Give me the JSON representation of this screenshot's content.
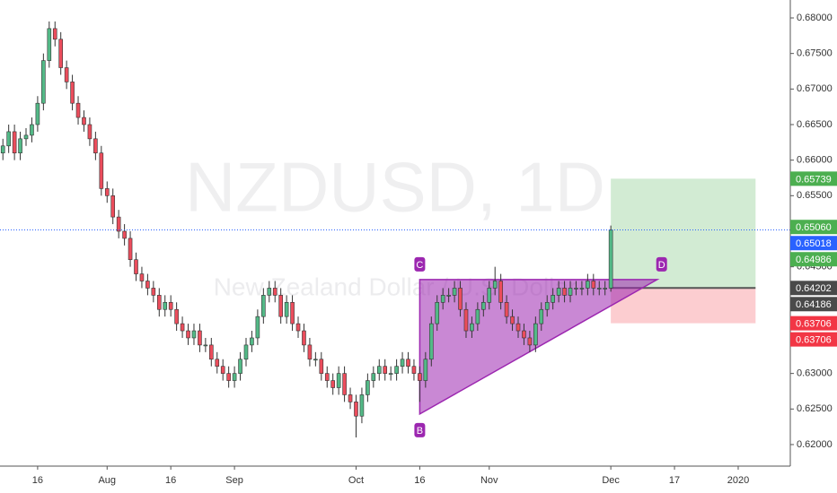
{
  "chart_data": {
    "type": "candlestick",
    "watermark": "NZDUSD, 1D",
    "subtitle": "New Zealand Dollar / U.S. Dollar",
    "up_color": "#53b987",
    "down_color": "#eb4d5c",
    "xlim": [
      -0.5,
      136
    ],
    "ylim": [
      0.61697,
      0.68252
    ],
    "xticks": [
      {
        "value": 6,
        "label": "16"
      },
      {
        "value": 18,
        "label": "Aug"
      },
      {
        "value": 29,
        "label": "16"
      },
      {
        "value": 40,
        "label": "Sep"
      },
      {
        "value": 61,
        "label": "Oct"
      },
      {
        "value": 72,
        "label": "16"
      },
      {
        "value": 84,
        "label": "Nov"
      },
      {
        "value": 105,
        "label": "Dec"
      },
      {
        "value": 116,
        "label": "17"
      },
      {
        "value": 127,
        "label": "2020"
      }
    ],
    "yticks": [
      {
        "value": 0.62,
        "label": "0.62000"
      },
      {
        "value": 0.625,
        "label": "0.62500"
      },
      {
        "value": 0.63,
        "label": "0.63000"
      },
      {
        "value": 0.635,
        "label": "0.63500"
      },
      {
        "value": 0.64,
        "label": "0.64000"
      },
      {
        "value": 0.645,
        "label": "0.64500"
      },
      {
        "value": 0.65,
        "label": "0.65000"
      },
      {
        "value": 0.655,
        "label": "0.65500"
      },
      {
        "value": 0.66,
        "label": "0.66000"
      },
      {
        "value": 0.665,
        "label": "0.66500"
      },
      {
        "value": 0.67,
        "label": "0.67000"
      },
      {
        "value": 0.675,
        "label": "0.67500"
      },
      {
        "value": 0.68,
        "label": "0.68000"
      }
    ],
    "ohlc": [
      [
        0.661,
        0.663,
        0.66,
        0.662
      ],
      [
        0.662,
        0.665,
        0.661,
        0.664
      ],
      [
        0.664,
        0.665,
        0.66,
        0.661
      ],
      [
        0.661,
        0.664,
        0.66,
        0.663
      ],
      [
        0.663,
        0.6645,
        0.662,
        0.6635
      ],
      [
        0.6635,
        0.666,
        0.6625,
        0.665
      ],
      [
        0.665,
        0.669,
        0.664,
        0.668
      ],
      [
        0.668,
        0.675,
        0.667,
        0.674
      ],
      [
        0.674,
        0.6795,
        0.673,
        0.6785
      ],
      [
        0.6785,
        0.6795,
        0.676,
        0.677
      ],
      [
        0.677,
        0.678,
        0.672,
        0.673
      ],
      [
        0.673,
        0.674,
        0.67,
        0.671
      ],
      [
        0.671,
        0.672,
        0.667,
        0.668
      ],
      [
        0.668,
        0.669,
        0.665,
        0.666
      ],
      [
        0.666,
        0.667,
        0.664,
        0.665
      ],
      [
        0.665,
        0.666,
        0.662,
        0.663
      ],
      [
        0.663,
        0.664,
        0.66,
        0.661
      ],
      [
        0.661,
        0.662,
        0.655,
        0.656
      ],
      [
        0.656,
        0.657,
        0.654,
        0.655
      ],
      [
        0.655,
        0.656,
        0.651,
        0.652
      ],
      [
        0.652,
        0.653,
        0.649,
        0.65
      ],
      [
        0.65,
        0.651,
        0.648,
        0.649
      ],
      [
        0.649,
        0.65,
        0.645,
        0.646
      ],
      [
        0.646,
        0.647,
        0.643,
        0.644
      ],
      [
        0.644,
        0.645,
        0.642,
        0.643
      ],
      [
        0.643,
        0.644,
        0.641,
        0.642
      ],
      [
        0.642,
        0.643,
        0.64,
        0.641
      ],
      [
        0.641,
        0.642,
        0.638,
        0.639
      ],
      [
        0.639,
        0.641,
        0.638,
        0.64
      ],
      [
        0.64,
        0.641,
        0.638,
        0.639
      ],
      [
        0.639,
        0.64,
        0.636,
        0.637
      ],
      [
        0.637,
        0.638,
        0.635,
        0.636
      ],
      [
        0.636,
        0.637,
        0.634,
        0.635
      ],
      [
        0.635,
        0.637,
        0.634,
        0.636
      ],
      [
        0.636,
        0.637,
        0.633,
        0.634
      ],
      [
        0.634,
        0.635,
        0.633,
        0.634
      ],
      [
        0.634,
        0.635,
        0.631,
        0.632
      ],
      [
        0.632,
        0.633,
        0.63,
        0.631
      ],
      [
        0.631,
        0.632,
        0.629,
        0.63
      ],
      [
        0.63,
        0.631,
        0.628,
        0.629
      ],
      [
        0.629,
        0.631,
        0.628,
        0.63
      ],
      [
        0.63,
        0.633,
        0.629,
        0.632
      ],
      [
        0.632,
        0.635,
        0.631,
        0.634
      ],
      [
        0.634,
        0.636,
        0.633,
        0.635
      ],
      [
        0.635,
        0.639,
        0.634,
        0.638
      ],
      [
        0.638,
        0.642,
        0.637,
        0.641
      ],
      [
        0.641,
        0.643,
        0.64,
        0.642
      ],
      [
        0.642,
        0.643,
        0.64,
        0.641
      ],
      [
        0.641,
        0.642,
        0.637,
        0.638
      ],
      [
        0.638,
        0.641,
        0.637,
        0.64
      ],
      [
        0.64,
        0.641,
        0.636,
        0.637
      ],
      [
        0.637,
        0.638,
        0.635,
        0.636
      ],
      [
        0.636,
        0.637,
        0.633,
        0.634
      ],
      [
        0.634,
        0.635,
        0.631,
        0.632
      ],
      [
        0.632,
        0.633,
        0.631,
        0.632
      ],
      [
        0.632,
        0.633,
        0.629,
        0.63
      ],
      [
        0.63,
        0.631,
        0.628,
        0.629
      ],
      [
        0.629,
        0.63,
        0.627,
        0.628
      ],
      [
        0.628,
        0.631,
        0.627,
        0.63
      ],
      [
        0.63,
        0.631,
        0.626,
        0.627
      ],
      [
        0.627,
        0.628,
        0.625,
        0.626
      ],
      [
        0.626,
        0.627,
        0.621,
        0.624
      ],
      [
        0.624,
        0.628,
        0.623,
        0.627
      ],
      [
        0.627,
        0.63,
        0.626,
        0.629
      ],
      [
        0.629,
        0.631,
        0.628,
        0.63
      ],
      [
        0.63,
        0.632,
        0.629,
        0.631
      ],
      [
        0.631,
        0.632,
        0.629,
        0.63
      ],
      [
        0.63,
        0.631,
        0.629,
        0.63
      ],
      [
        0.63,
        0.632,
        0.629,
        0.631
      ],
      [
        0.631,
        0.633,
        0.63,
        0.632
      ],
      [
        0.632,
        0.633,
        0.63,
        0.631
      ],
      [
        0.631,
        0.632,
        0.629,
        0.63
      ],
      [
        0.63,
        0.631,
        0.626,
        0.629
      ],
      [
        0.629,
        0.633,
        0.628,
        0.632
      ],
      [
        0.632,
        0.638,
        0.631,
        0.637
      ],
      [
        0.637,
        0.641,
        0.636,
        0.64
      ],
      [
        0.64,
        0.642,
        0.639,
        0.641
      ],
      [
        0.641,
        0.642,
        0.64,
        0.641
      ],
      [
        0.641,
        0.643,
        0.64,
        0.642
      ],
      [
        0.642,
        0.643,
        0.638,
        0.639
      ],
      [
        0.639,
        0.64,
        0.635,
        0.636
      ],
      [
        0.636,
        0.638,
        0.635,
        0.637
      ],
      [
        0.637,
        0.64,
        0.636,
        0.639
      ],
      [
        0.639,
        0.641,
        0.638,
        0.64
      ],
      [
        0.64,
        0.643,
        0.639,
        0.642
      ],
      [
        0.642,
        0.645,
        0.641,
        0.643
      ],
      [
        0.643,
        0.644,
        0.639,
        0.64
      ],
      [
        0.64,
        0.641,
        0.637,
        0.638
      ],
      [
        0.638,
        0.639,
        0.636,
        0.637
      ],
      [
        0.637,
        0.638,
        0.635,
        0.636
      ],
      [
        0.636,
        0.637,
        0.634,
        0.635
      ],
      [
        0.635,
        0.636,
        0.633,
        0.634
      ],
      [
        0.634,
        0.638,
        0.633,
        0.637
      ],
      [
        0.637,
        0.64,
        0.636,
        0.639
      ],
      [
        0.639,
        0.641,
        0.638,
        0.64
      ],
      [
        0.64,
        0.642,
        0.639,
        0.641
      ],
      [
        0.641,
        0.643,
        0.64,
        0.642
      ],
      [
        0.642,
        0.643,
        0.64,
        0.641
      ],
      [
        0.641,
        0.643,
        0.64,
        0.642
      ],
      [
        0.642,
        0.643,
        0.641,
        0.642
      ],
      [
        0.642,
        0.643,
        0.641,
        0.642
      ],
      [
        0.642,
        0.644,
        0.641,
        0.643
      ],
      [
        0.643,
        0.644,
        0.641,
        0.642
      ],
      [
        0.642,
        0.643,
        0.641,
        0.642
      ],
      [
        0.642,
        0.643,
        0.641,
        0.642
      ],
      [
        0.642,
        0.6508,
        0.6415,
        0.6502
      ]
    ],
    "pattern": {
      "color": "#9c27b0",
      "points": [
        {
          "label": "B",
          "x": 72,
          "y": 0.6243
        },
        {
          "label": "C",
          "x": 72,
          "y": 0.6432
        },
        {
          "label": "D",
          "x": 113,
          "y": 0.6432
        }
      ]
    },
    "position": {
      "start": 105,
      "end": 130,
      "entry": 0.64202,
      "target": 0.65739,
      "stop": 0.63706
    },
    "price_tags": [
      {
        "value": 0.65739,
        "label": "0.65739",
        "color": "#4caf50"
      },
      {
        "value": 0.6506,
        "label": "0.65060",
        "color": "#4caf50"
      },
      {
        "value": 0.65018,
        "label": "0.65018",
        "color": "#2962ff",
        "dotted_line": true
      },
      {
        "value": 0.64986,
        "label": "0.64986",
        "color": "#4caf50"
      },
      {
        "value": 0.64202,
        "label": "0.64202",
        "color": "#4a4a4a"
      },
      {
        "value": 0.64186,
        "label": "0.64186",
        "color": "#4a4a4a"
      },
      {
        "value": 0.63706,
        "label": "0.63706",
        "color": "#f23645"
      },
      {
        "value": 0.63706,
        "label": "0.63706",
        "color": "#f23645"
      }
    ]
  }
}
